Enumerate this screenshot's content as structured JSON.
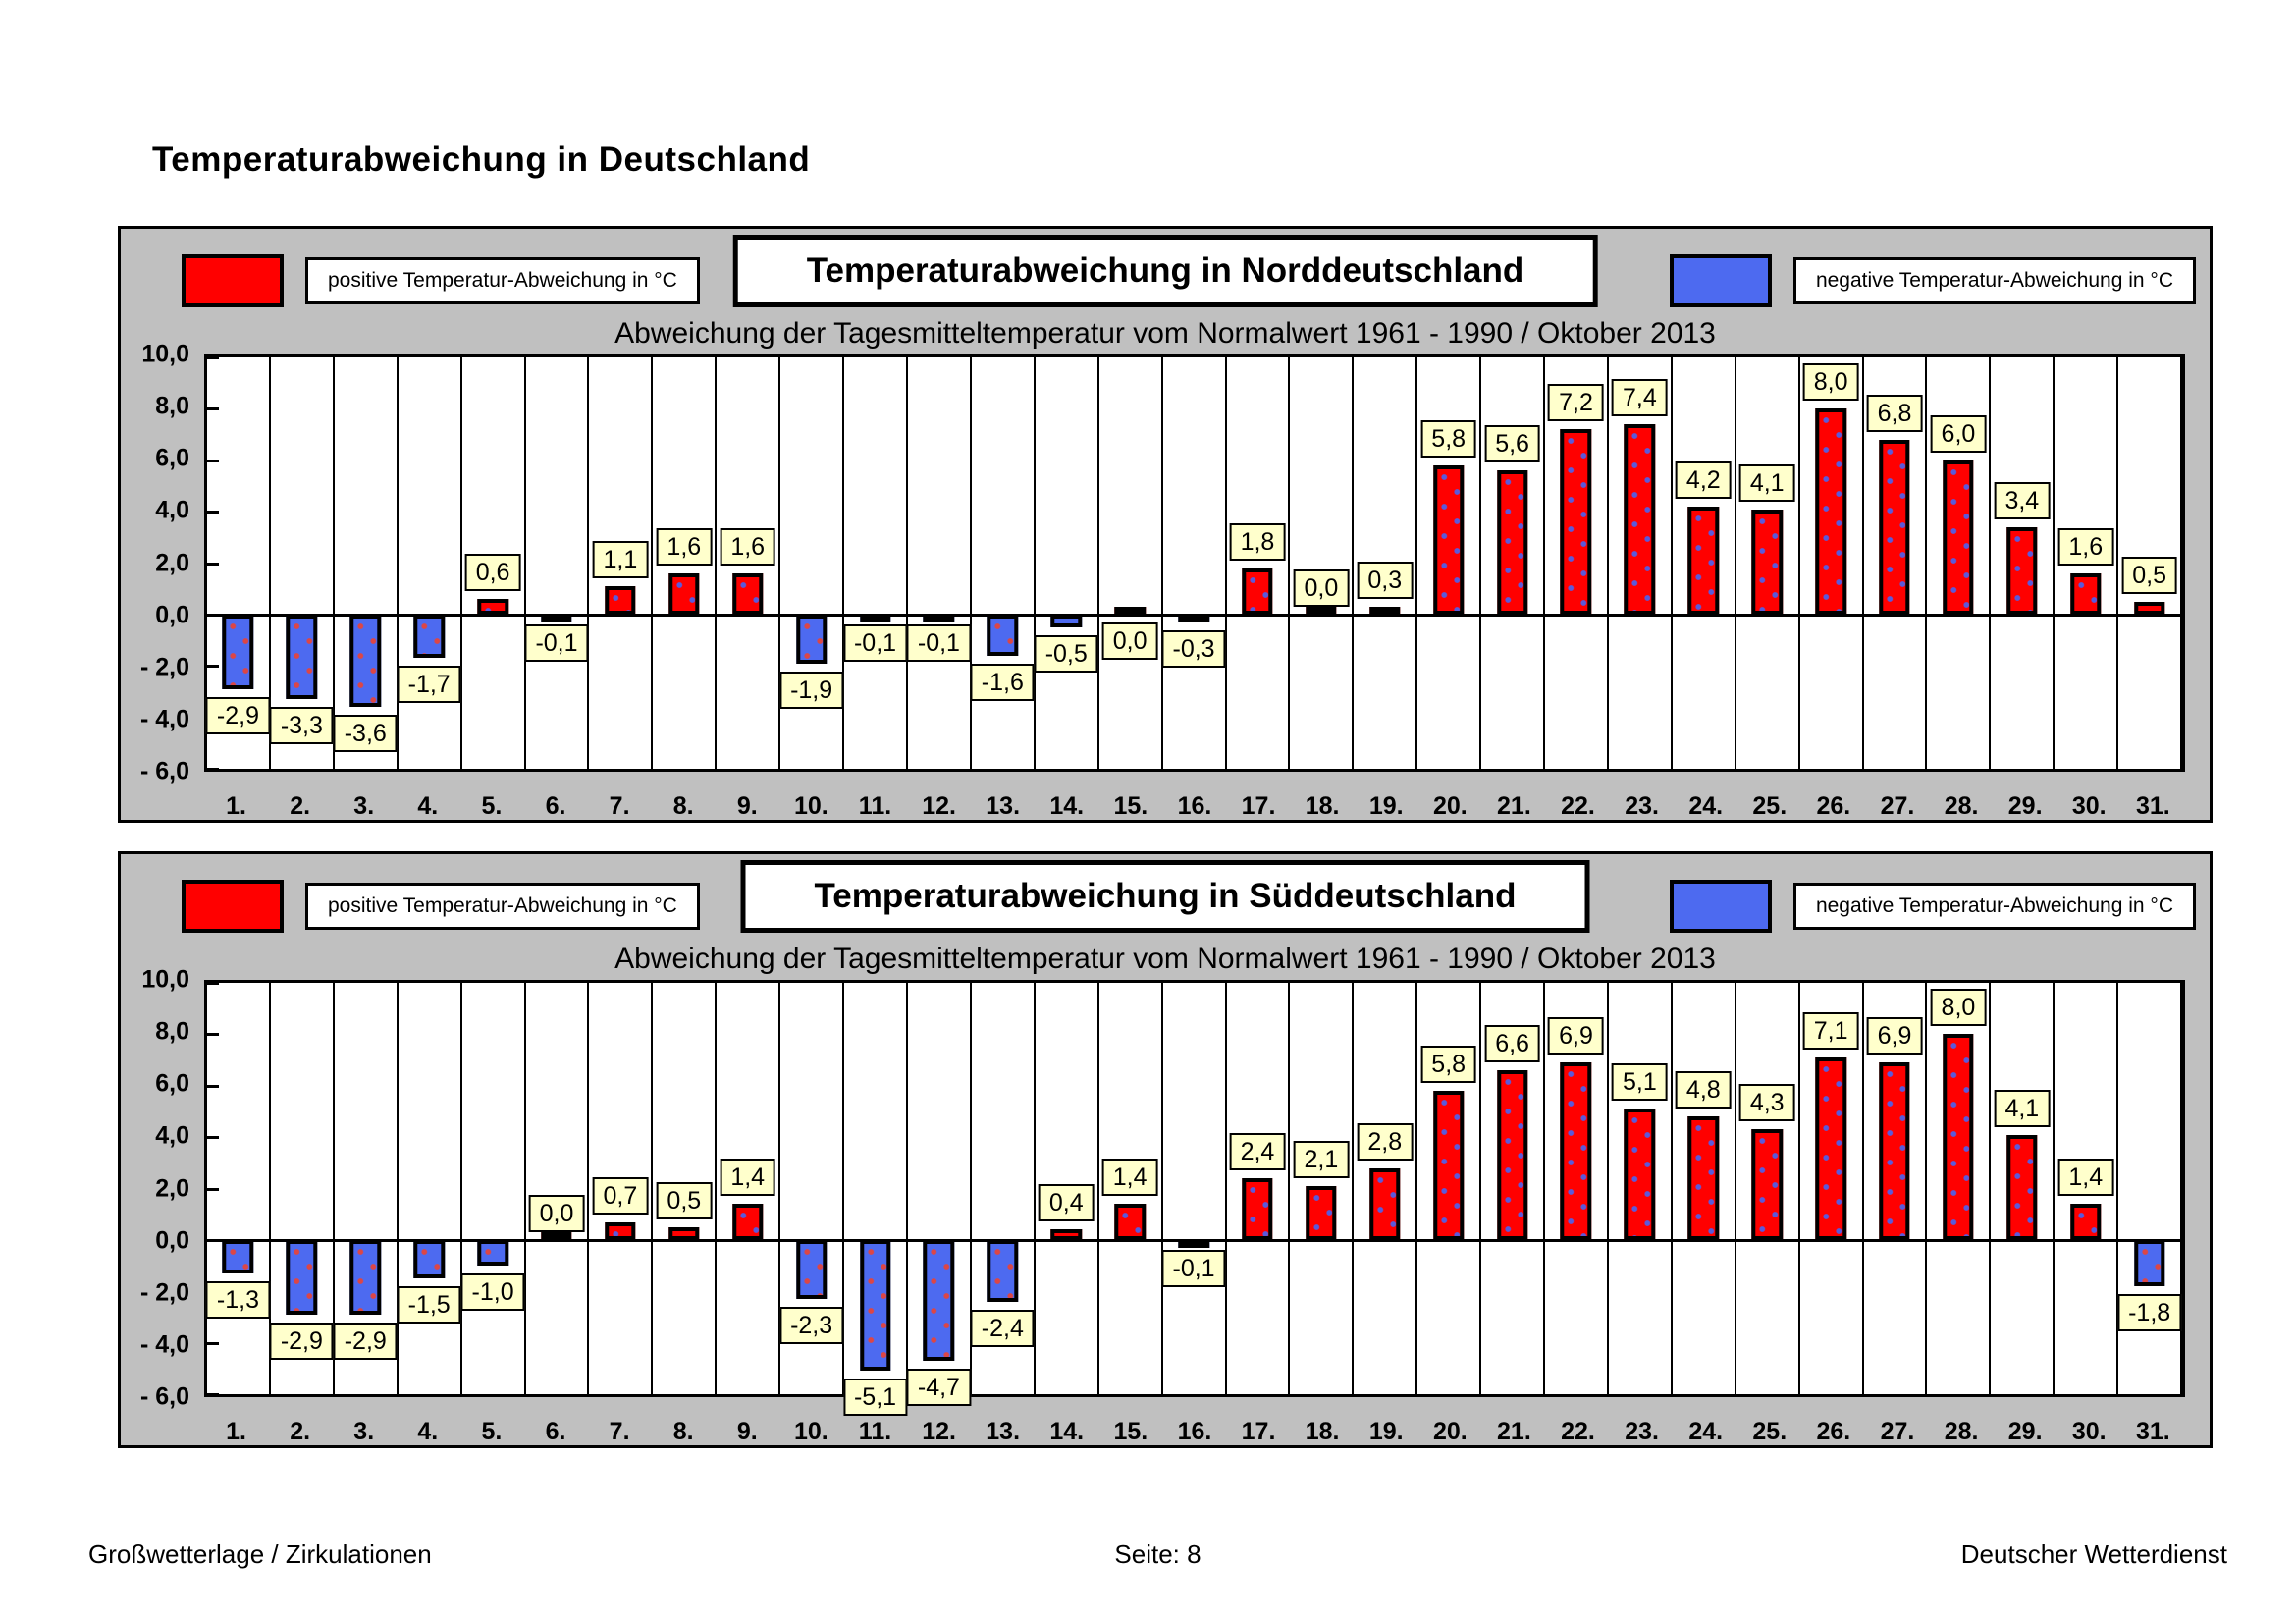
{
  "page": {
    "title": "Temperaturabweichung in Deutschland",
    "footer_left": "Großwetterlage / Zirkulationen",
    "footer_center": "Seite: 8",
    "footer_right": "Deutscher Wetterdienst"
  },
  "legend": {
    "positive_label": "positive Temperatur-Abweichung in °C",
    "negative_label": "negative Temperatur-Abweichung in °C"
  },
  "colors": {
    "panel_bg": "#C0C0C0",
    "positive_bar": "#FF0000",
    "negative_bar": "#4D6AF0",
    "positive_bar_dot": "#5A5ADC",
    "negative_bar_dot": "#DC4646",
    "value_label_bg": "#FFFFCC"
  },
  "chart_data": [
    {
      "type": "bar",
      "title": "Temperaturabweichung in Norddeutschland",
      "subtitle": "Abweichung der Tagesmitteltemperatur vom Normalwert 1961 - 1990 / Oktober 2013",
      "xlabel": "",
      "ylabel": "",
      "ylim": [
        -6,
        10
      ],
      "ytick_step": 2,
      "grid": "vertical-category-separators-only",
      "legend_position": "header-left-right",
      "yticks": [
        "10,0",
        "8,0",
        "6,0",
        "4,0",
        "2,0",
        "0,0",
        "- 2,0",
        "- 4,0",
        "- 6,0"
      ],
      "categories": [
        "1.",
        "2.",
        "3.",
        "4.",
        "5.",
        "6.",
        "7.",
        "8.",
        "9.",
        "10.",
        "11.",
        "12.",
        "13.",
        "14.",
        "15.",
        "16.",
        "17.",
        "18.",
        "19.",
        "20.",
        "21.",
        "22.",
        "23.",
        "24.",
        "25.",
        "26.",
        "27.",
        "28.",
        "29.",
        "30.",
        "31."
      ],
      "values": [
        -2.9,
        -3.3,
        -3.6,
        -1.7,
        0.6,
        -0.1,
        1.1,
        1.6,
        1.6,
        -1.9,
        -0.1,
        -0.1,
        -1.6,
        -0.5,
        0.0,
        -0.3,
        1.8,
        0.0,
        0.3,
        5.8,
        5.6,
        7.2,
        7.4,
        4.2,
        4.1,
        8.0,
        6.8,
        6.0,
        3.4,
        1.6,
        0.5
      ],
      "labels": [
        "-2,9",
        "-3,3",
        "-3,6",
        "-1,7",
        "0,6",
        "-0,1",
        "1,1",
        "1,6",
        "1,6",
        "-1,9",
        "-0,1",
        "-0,1",
        "-1,6",
        "-0,5",
        "0,0",
        "-0,3",
        "1,8",
        "0,0",
        "0,3",
        "5,8",
        "5,6",
        "7,2",
        "7,4",
        "4,2",
        "4,1",
        "8,0",
        "6,8",
        "6,0",
        "3,4",
        "1,6",
        "0,5"
      ],
      "zero_label_below_idx": [
        14
      ]
    },
    {
      "type": "bar",
      "title": "Temperaturabweichung in Süddeutschland",
      "subtitle": "Abweichung der Tagesmitteltemperatur vom Normalwert 1961 - 1990 / Oktober 2013",
      "xlabel": "",
      "ylabel": "",
      "ylim": [
        -6,
        10
      ],
      "ytick_step": 2,
      "grid": "vertical-category-separators-only",
      "legend_position": "header-left-right",
      "yticks": [
        "10,0",
        "8,0",
        "6,0",
        "4,0",
        "2,0",
        "0,0",
        "- 2,0",
        "- 4,0",
        "- 6,0"
      ],
      "categories": [
        "1.",
        "2.",
        "3.",
        "4.",
        "5.",
        "6.",
        "7.",
        "8.",
        "9.",
        "10.",
        "11.",
        "12.",
        "13.",
        "14.",
        "15.",
        "16.",
        "17.",
        "18.",
        "19.",
        "20.",
        "21.",
        "22.",
        "23.",
        "24.",
        "25.",
        "26.",
        "27.",
        "28.",
        "29.",
        "30.",
        "31."
      ],
      "values": [
        -1.3,
        -2.9,
        -2.9,
        -1.5,
        -1.0,
        0.0,
        0.7,
        0.5,
        1.4,
        -2.3,
        -5.1,
        -4.7,
        -2.4,
        0.4,
        1.4,
        -0.1,
        2.4,
        2.1,
        2.8,
        5.8,
        6.6,
        6.9,
        5.1,
        4.8,
        4.3,
        7.1,
        6.9,
        8.0,
        4.1,
        1.4,
        -1.8
      ],
      "labels": [
        "-1,3",
        "-2,9",
        "-2,9",
        "-1,5",
        "-1,0",
        "0,0",
        "0,7",
        "0,5",
        "1,4",
        "-2,3",
        "-5,1",
        "-4,7",
        "-2,4",
        "0,4",
        "1,4",
        "-0,1",
        "2,4",
        "2,1",
        "2,8",
        "5,8",
        "6,6",
        "6,9",
        "5,1",
        "4,8",
        "4,3",
        "7,1",
        "6,9",
        "8,0",
        "4,1",
        "1,4",
        "-1,8"
      ],
      "zero_label_below_idx": []
    }
  ]
}
